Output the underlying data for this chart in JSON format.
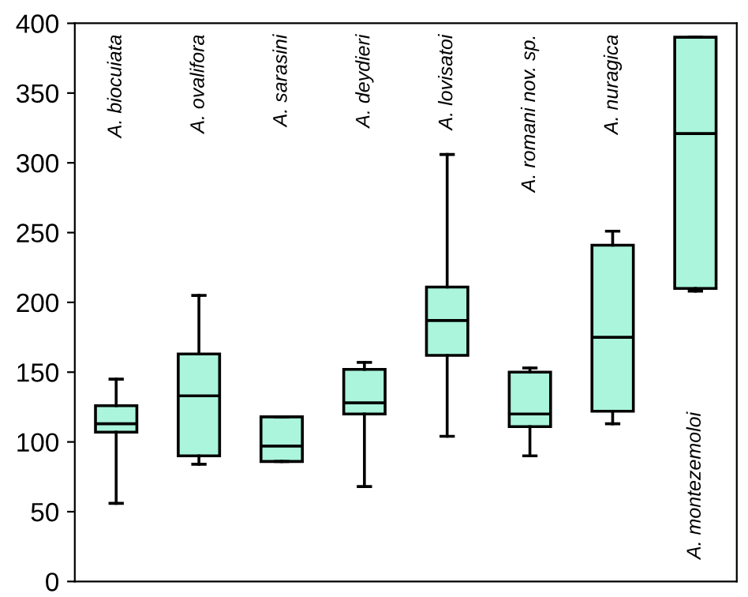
{
  "chart_data": {
    "type": "box",
    "categories": [
      "A. biocuiata",
      "A. ovalifora",
      "A. sarasini",
      "A. deydieri",
      "A. lovisatoi",
      "A. romani nov. sp.",
      "A. nuragica",
      "A. montezemoloi"
    ],
    "series": [
      {
        "color": "#aaf5dc",
        "boxes": [
          {
            "low": 56,
            "q1": 107,
            "median": 113,
            "q3": 126,
            "high": 145
          },
          {
            "low": 84,
            "q1": 90,
            "median": 133,
            "q3": 163,
            "high": 205
          },
          {
            "low": 86,
            "q1": 86,
            "median": 97,
            "q3": 118,
            "high": 118
          },
          {
            "low": 68,
            "q1": 120,
            "median": 128,
            "q3": 152,
            "high": 157
          },
          {
            "low": 104,
            "q1": 162,
            "median": 187,
            "q3": 211,
            "high": 306
          },
          {
            "low": 90,
            "q1": 111,
            "median": 120,
            "q3": 150,
            "high": 153
          },
          {
            "low": 113,
            "q1": 122,
            "median": 175,
            "q3": 241,
            "high": 251
          },
          {
            "low": 208,
            "q1": 210,
            "median": 321,
            "q3": 390,
            "high": 390
          }
        ]
      }
    ],
    "ylim": [
      0,
      400
    ],
    "yticks": [
      0,
      50,
      100,
      150,
      200,
      250,
      300,
      350,
      400
    ],
    "tick_labels": "y",
    "grid": false
  }
}
